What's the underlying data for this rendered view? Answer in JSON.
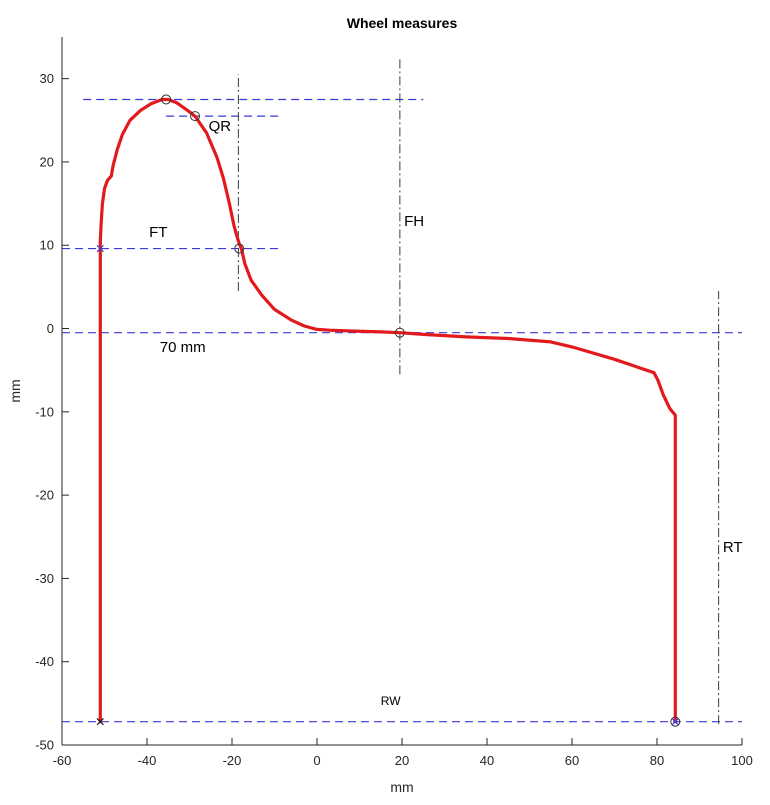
{
  "chart_data": {
    "type": "line",
    "title": "Wheel measures",
    "xlabel": "mm",
    "ylabel": "mm",
    "xlim": [
      -60,
      100
    ],
    "ylim": [
      -50,
      35
    ],
    "xticks": [
      -60,
      -40,
      -20,
      0,
      20,
      40,
      60,
      80,
      100
    ],
    "yticks": [
      -50,
      -40,
      -30,
      -20,
      -10,
      0,
      10,
      20,
      30
    ],
    "grid": false,
    "colors": {
      "profile": "#e31a1c",
      "guide": "#3a3ad6",
      "vertical_guide": "#3c3c3c",
      "axis": "#262626"
    },
    "series": [
      {
        "values_x": [
          -51,
          -51,
          -50.8,
          -50.5,
          -50,
          -49.3,
          -48.4,
          -48,
          -47,
          -45.8,
          -44,
          -41.5,
          -39,
          -36.5,
          -35,
          -33,
          -30.5,
          -28.7,
          -26,
          -23.5,
          -22,
          -20.6,
          -19.6,
          -18.8,
          -18.3,
          -17.8,
          -17,
          -15.5,
          -13,
          -10,
          -6,
          -3,
          0,
          3,
          8,
          15,
          19.5,
          25,
          35,
          45,
          55,
          60,
          70,
          79.3,
          80.2,
          81.5,
          83,
          84.3,
          84.3,
          84.3
        ],
        "values_y": [
          -47.2,
          10.5,
          12.5,
          15,
          16.8,
          17.8,
          18.3,
          19.5,
          21.5,
          23.3,
          25,
          26.2,
          27,
          27.5,
          27.5,
          27.1,
          26.2,
          25.5,
          23.5,
          20.5,
          18,
          15,
          12.5,
          11,
          10.2,
          9.6,
          7.8,
          5.8,
          4,
          2.3,
          1,
          0.3,
          -0.1,
          -0.2,
          -0.3,
          -0.4,
          -0.5,
          -0.7,
          -1,
          -1.2,
          -1.6,
          -2.2,
          -3.7,
          -5.3,
          -6.2,
          -8,
          -9.6,
          -10.4,
          -30,
          -47.2
        ]
      }
    ],
    "guides": {
      "horizontal": [
        {
          "y": 27.5,
          "x1": -55,
          "x2": 25
        },
        {
          "y": 25.5,
          "x1": -35.5,
          "x2": -8
        },
        {
          "y": 9.6,
          "x1": -60,
          "x2": -8
        },
        {
          "y": -0.5,
          "x1": -60,
          "x2": 100
        },
        {
          "y": -47.2,
          "x1": -60,
          "x2": 100
        }
      ],
      "vertical": [
        {
          "x": -18.5,
          "y1": 4.5,
          "y2": 30.5
        },
        {
          "x": 19.5,
          "y1": -5.5,
          "y2": 32.5
        },
        {
          "x": 94.5,
          "y1": -47.5,
          "y2": 4.5
        }
      ]
    },
    "markers": {
      "circles": [
        {
          "x": -35.5,
          "y": 27.5
        },
        {
          "x": -28.7,
          "y": 25.5
        },
        {
          "x": -18.3,
          "y": 9.6
        },
        {
          "x": 19.5,
          "y": -0.5
        },
        {
          "x": 84.3,
          "y": -47.2
        }
      ],
      "crosses_blue": [
        {
          "x": -51,
          "y": 9.6
        },
        {
          "x": 84.3,
          "y": -47.2
        }
      ],
      "crosses_black": [
        {
          "x": -51,
          "y": -47.2
        }
      ]
    },
    "annotations": [
      {
        "text": "QR",
        "x": -25.5,
        "y": 23.7,
        "size": "normal"
      },
      {
        "text": "FH",
        "x": 20.5,
        "y": 12.3,
        "size": "normal"
      },
      {
        "text": "FT",
        "x": -39.5,
        "y": 11,
        "size": "normal"
      },
      {
        "text": "70 mm",
        "x": -37,
        "y": -2.8,
        "size": "normal"
      },
      {
        "text": "RT",
        "x": 95.5,
        "y": -26.8,
        "size": "normal"
      },
      {
        "text": "RW",
        "x": 15,
        "y": -45.2,
        "size": "small"
      }
    ]
  }
}
